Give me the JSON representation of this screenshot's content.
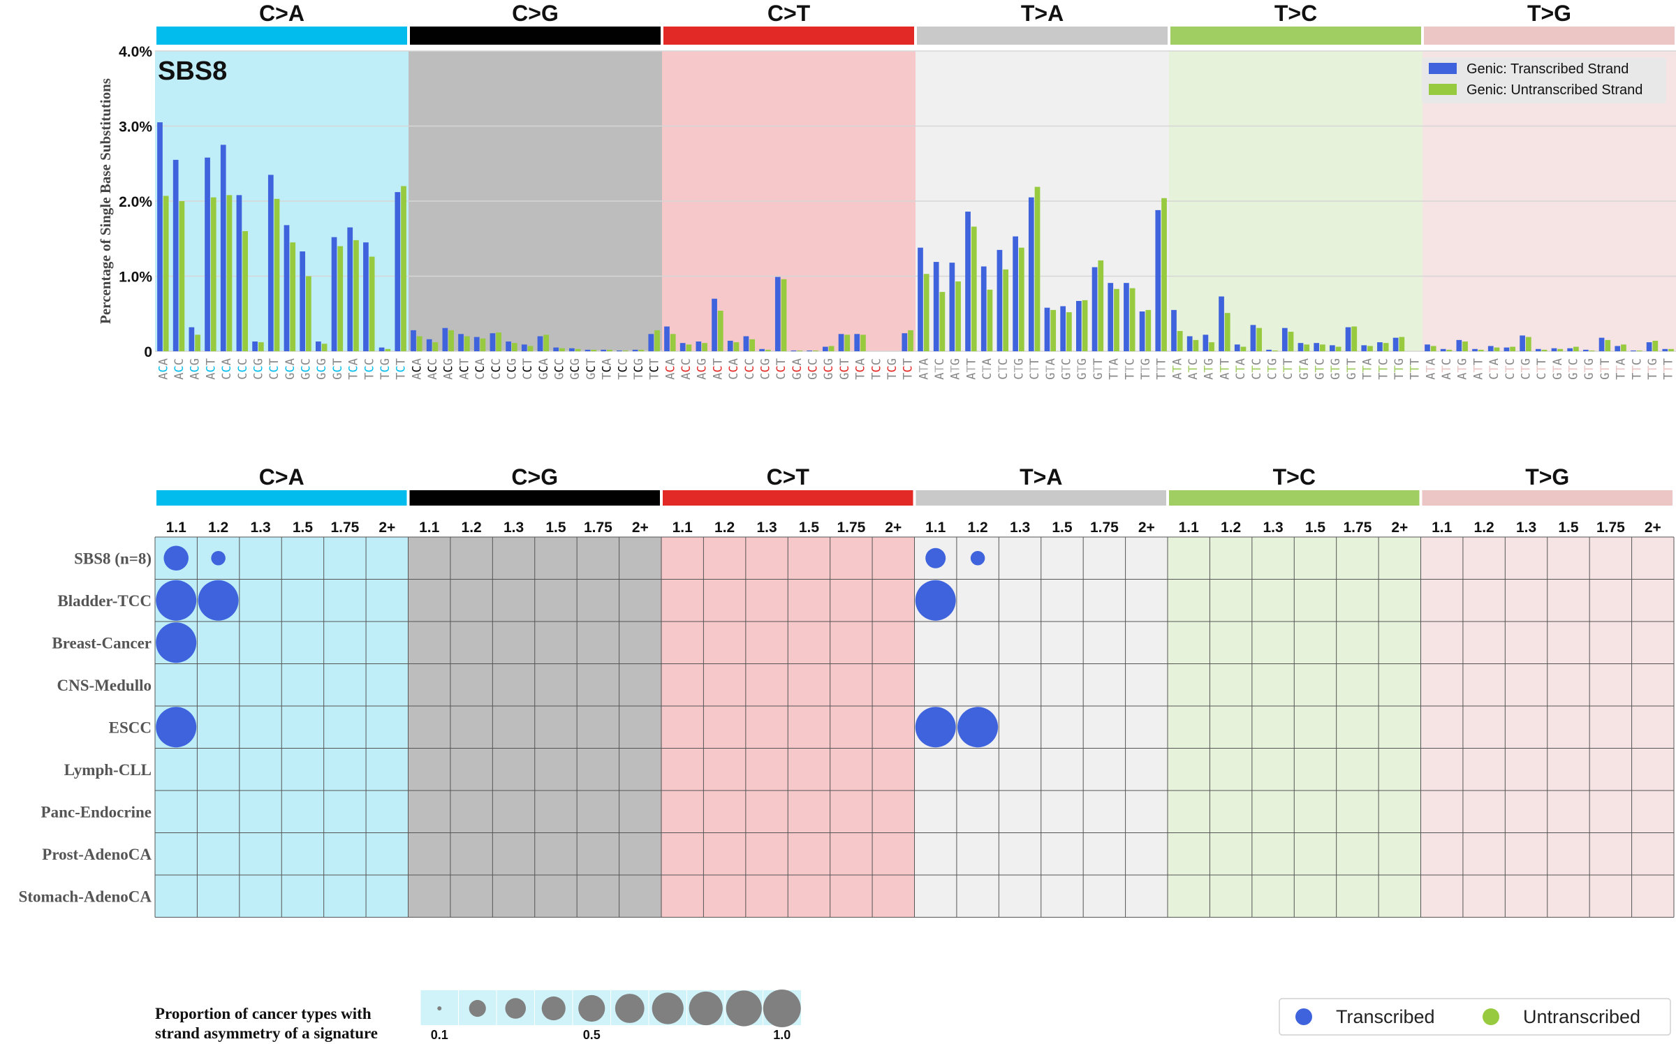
{
  "chart_data": [
    {
      "type": "bar",
      "title": "SBS8",
      "ylabel": "Percentage of Single Base Substitutions",
      "ylim": [
        0,
        4.0
      ],
      "yticks": [
        "0",
        "1.0%",
        "2.0%",
        "3.0%",
        "4.0%"
      ],
      "grid": true,
      "legend_placement": "top-right",
      "mutation_types": [
        "C>A",
        "C>G",
        "C>T",
        "T>A",
        "T>C",
        "T>G"
      ],
      "type_colors": [
        "#03bcee",
        "#010101",
        "#e32926",
        "#cac9c9",
        "#a1ce63",
        "#ebc6c4"
      ],
      "panel_colors": [
        "#bfeef8",
        "#bdbdbd",
        "#f7c8ca",
        "#f0f0f0",
        "#e6f2d9",
        "#f6e4e4"
      ],
      "categories": [
        "ACA",
        "ACC",
        "ACG",
        "ACT",
        "CCA",
        "CCC",
        "CCG",
        "CCT",
        "GCA",
        "GCC",
        "GCG",
        "GCT",
        "TCA",
        "TCC",
        "TCG",
        "TCT"
      ],
      "series": [
        {
          "name": "Genic: Transcribed Strand",
          "color": "#3e63dd",
          "values": [
            [
              3.05,
              2.55,
              0.32,
              2.58,
              2.75,
              2.08,
              0.13,
              2.35,
              1.68,
              1.33,
              0.13,
              1.52,
              1.65,
              1.45,
              0.05,
              2.12
            ],
            [
              0.28,
              0.16,
              0.31,
              0.23,
              0.19,
              0.24,
              0.13,
              0.09,
              0.2,
              0.05,
              0.04,
              0.02,
              0.02,
              0.01,
              0.02,
              0.23
            ],
            [
              0.33,
              0.11,
              0.13,
              0.7,
              0.14,
              0.2,
              0.03,
              0.99,
              0.01,
              0.01,
              0.06,
              0.23,
              0.23,
              0.0,
              0.0,
              0.24
            ],
            [
              1.38,
              1.19,
              1.18,
              1.86,
              1.13,
              1.35,
              1.53,
              2.05,
              0.58,
              0.6,
              0.67,
              1.12,
              0.91,
              0.91,
              0.53,
              1.88
            ],
            [
              0.55,
              0.2,
              0.22,
              0.73,
              0.09,
              0.35,
              0.02,
              0.31,
              0.11,
              0.11,
              0.08,
              0.32,
              0.08,
              0.12,
              0.18,
              0.0
            ],
            [
              0.09,
              0.03,
              0.15,
              0.03,
              0.07,
              0.05,
              0.21,
              0.03,
              0.04,
              0.04,
              0.02,
              0.18,
              0.07,
              0.01,
              0.12,
              0.03
            ]
          ]
        },
        {
          "name": "Genic: Untranscribed Strand",
          "color": "#97ca3e",
          "values": [
            [
              2.07,
              2.0,
              0.22,
              2.05,
              2.08,
              1.6,
              0.12,
              2.03,
              1.45,
              1.0,
              0.1,
              1.4,
              1.48,
              1.26,
              0.03,
              2.2
            ],
            [
              0.2,
              0.12,
              0.28,
              0.2,
              0.17,
              0.25,
              0.11,
              0.07,
              0.22,
              0.04,
              0.03,
              0.02,
              0.02,
              0.01,
              0.02,
              0.28
            ],
            [
              0.23,
              0.09,
              0.11,
              0.54,
              0.12,
              0.16,
              0.02,
              0.96,
              0.01,
              0.01,
              0.07,
              0.22,
              0.22,
              0.0,
              0.0,
              0.28
            ],
            [
              1.03,
              0.79,
              0.93,
              1.66,
              0.82,
              1.09,
              1.38,
              2.19,
              0.55,
              0.52,
              0.68,
              1.21,
              0.83,
              0.84,
              0.55,
              2.04
            ],
            [
              0.27,
              0.15,
              0.12,
              0.51,
              0.06,
              0.31,
              0.01,
              0.26,
              0.09,
              0.09,
              0.06,
              0.33,
              0.07,
              0.11,
              0.19,
              0.0
            ],
            [
              0.07,
              0.02,
              0.13,
              0.02,
              0.05,
              0.06,
              0.19,
              0.02,
              0.03,
              0.06,
              0.01,
              0.15,
              0.09,
              0.01,
              0.14,
              0.03
            ]
          ]
        }
      ]
    },
    {
      "type": "scatter",
      "mutation_types": [
        "C>A",
        "C>G",
        "C>T",
        "T>A",
        "T>C",
        "T>G"
      ],
      "columns": [
        "1.1",
        "1.2",
        "1.3",
        "1.5",
        "1.75",
        "2+"
      ],
      "rows": [
        "SBS8 (n=8)",
        "Bladder-TCC",
        "Breast-Cancer",
        "CNS-Medullo",
        "ESCC",
        "Lymph-CLL",
        "Panc-Endocrine",
        "Prost-AdenoCA",
        "Stomach-AdenoCA"
      ],
      "points": [
        {
          "row": "SBS8 (n=8)",
          "type": "C>A",
          "col": "1.1",
          "value": 0.375,
          "strand": "Transcribed"
        },
        {
          "row": "SBS8 (n=8)",
          "type": "C>A",
          "col": "1.2",
          "value": 0.125,
          "strand": "Transcribed"
        },
        {
          "row": "SBS8 (n=8)",
          "type": "T>A",
          "col": "1.1",
          "value": 0.25,
          "strand": "Transcribed"
        },
        {
          "row": "SBS8 (n=8)",
          "type": "T>A",
          "col": "1.2",
          "value": 0.125,
          "strand": "Transcribed"
        },
        {
          "row": "Bladder-TCC",
          "type": "C>A",
          "col": "1.1",
          "value": 1.0,
          "strand": "Transcribed"
        },
        {
          "row": "Bladder-TCC",
          "type": "C>A",
          "col": "1.2",
          "value": 1.0,
          "strand": "Transcribed"
        },
        {
          "row": "Bladder-TCC",
          "type": "T>A",
          "col": "1.1",
          "value": 1.0,
          "strand": "Transcribed"
        },
        {
          "row": "Breast-Cancer",
          "type": "C>A",
          "col": "1.1",
          "value": 1.0,
          "strand": "Transcribed"
        },
        {
          "row": "ESCC",
          "type": "C>A",
          "col": "1.1",
          "value": 1.0,
          "strand": "Transcribed"
        },
        {
          "row": "ESCC",
          "type": "T>A",
          "col": "1.1",
          "value": 1.0,
          "strand": "Transcribed"
        },
        {
          "row": "ESCC",
          "type": "T>A",
          "col": "1.2",
          "value": 1.0,
          "strand": "Transcribed"
        }
      ]
    }
  ],
  "size_legend": {
    "title_line1": "Proportion of cancer types with",
    "title_line2": "strand asymmetry of a signature",
    "values": [
      0.1,
      0.2,
      0.3,
      0.4,
      0.5,
      0.6,
      0.7,
      0.8,
      0.9,
      1.0
    ],
    "labels": [
      "0.1",
      "0.5",
      "1.0"
    ]
  },
  "strand_legend": [
    {
      "label": "Transcribed",
      "color": "#3e63dd"
    },
    {
      "label": "Untranscribed",
      "color": "#97ca3e"
    }
  ]
}
